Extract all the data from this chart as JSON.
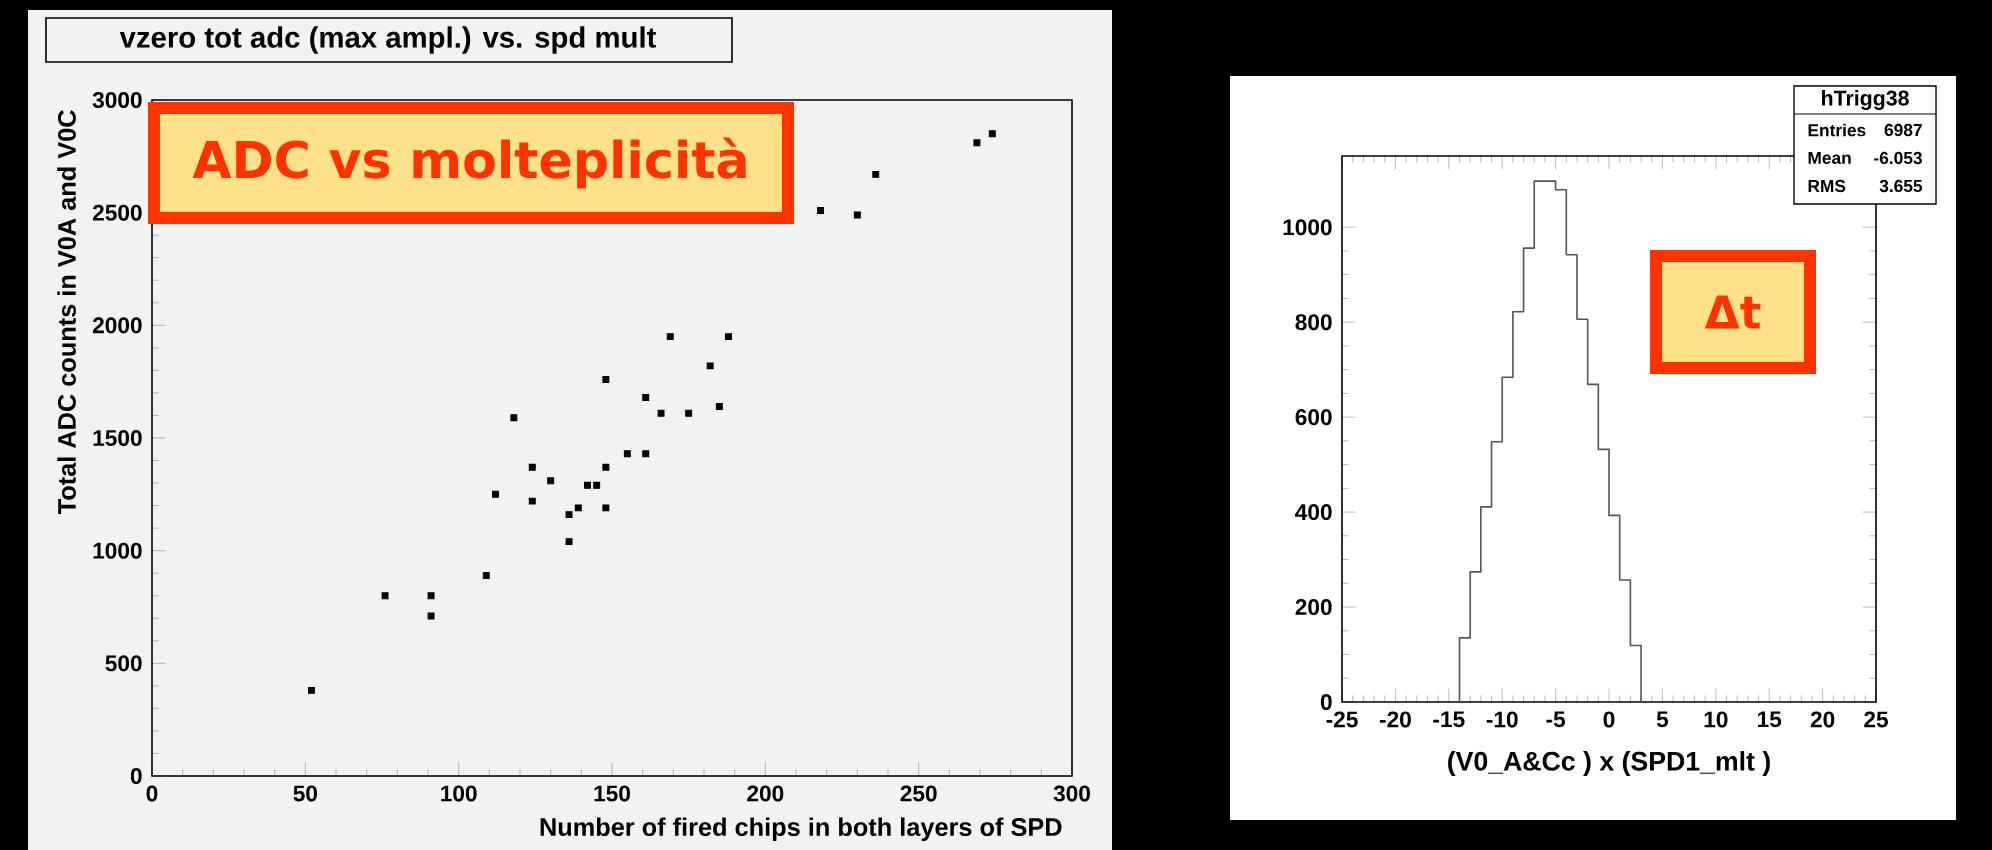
{
  "chart_data": [
    {
      "type": "scatter",
      "title": "vzero tot adc (max ampl.) vs. spd mult",
      "xlabel": "Number of fired chips in both layers of SPD",
      "ylabel": "Total ADC counts in V0A and V0C",
      "color": "#000000",
      "marker": "square",
      "x": [
        52,
        76,
        91,
        91,
        109,
        112,
        118,
        124,
        124,
        130,
        136,
        136,
        139,
        142,
        145,
        148,
        148,
        148,
        155,
        161,
        161,
        166,
        169,
        175,
        182,
        185,
        188,
        218,
        230,
        236,
        269,
        274
      ],
      "values": [
        380,
        800,
        800,
        710,
        890,
        1250,
        1590,
        1370,
        1220,
        1310,
        1160,
        1040,
        1190,
        1290,
        1290,
        1760,
        1370,
        1190,
        1430,
        1430,
        1680,
        1610,
        1950,
        1610,
        1820,
        1640,
        1950,
        2510,
        2490,
        2670,
        2810,
        2850
      ],
      "xlim": [
        0,
        300
      ],
      "ylim": [
        0,
        3000
      ],
      "xticks": [
        0,
        50,
        100,
        150,
        200,
        250,
        300
      ],
      "yticks": [
        0,
        500,
        1000,
        1500,
        2000,
        2500,
        3000
      ],
      "annotations": [
        "ADC vs molteplicità"
      ]
    },
    {
      "type": "histogram",
      "xlabel": "(V0_A&Cc   ) x (SPD1_mlt  )",
      "color": "#555555",
      "bins": [
        -14,
        -13,
        -12,
        -11,
        -10,
        -9,
        -8,
        -7,
        -6,
        -5,
        -4,
        -3,
        -2,
        -1,
        0,
        1,
        2,
        3
      ],
      "values": [
        135,
        274,
        411,
        548,
        684,
        822,
        956,
        1097,
        1097,
        1079,
        942,
        806,
        669,
        532,
        393,
        257,
        119
      ],
      "xlim": [
        -25,
        25
      ],
      "ylim": [
        0,
        1150
      ],
      "xticks": [
        -25,
        -20,
        -15,
        -10,
        -5,
        0,
        5,
        10,
        15,
        20,
        25
      ],
      "yticks": [
        0,
        200,
        400,
        600,
        800,
        1000
      ],
      "annotations": [
        "Δt",
        "hTrigg38",
        "Entries",
        "6987",
        "Mean",
        "-6.053",
        "RMS",
        "3.655"
      ]
    }
  ]
}
